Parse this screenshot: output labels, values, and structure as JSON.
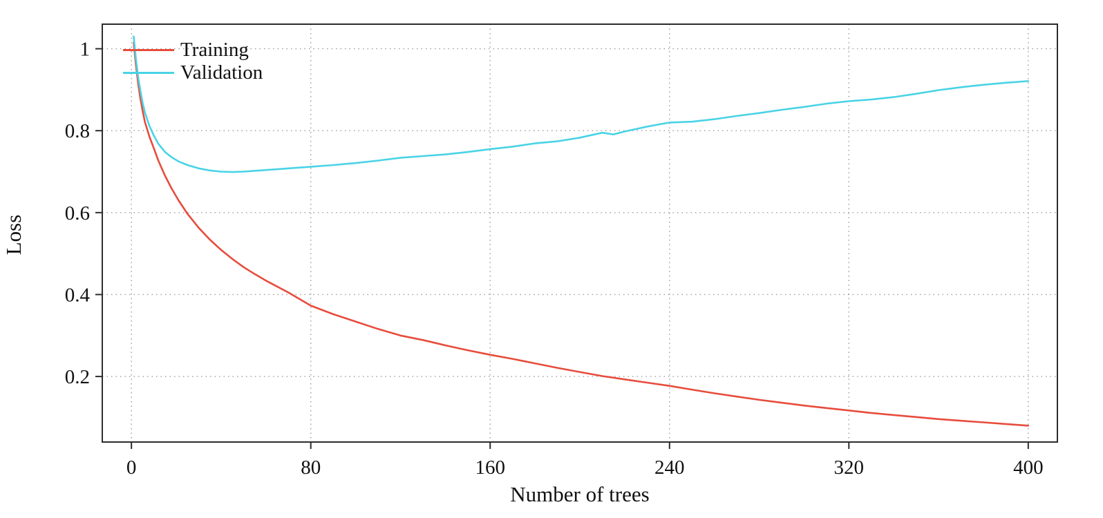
{
  "chart_data": {
    "type": "line",
    "title": "",
    "xlabel": "Number of trees",
    "ylabel": "Loss",
    "xlim": [
      -13,
      413
    ],
    "ylim": [
      0.04,
      1.06
    ],
    "x_ticks": [
      0,
      80,
      160,
      240,
      320,
      400
    ],
    "x_tick_labels": [
      "0",
      "80",
      "160",
      "240",
      "320",
      "400"
    ],
    "y_ticks": [
      0.2,
      0.4,
      0.6,
      0.8,
      1
    ],
    "y_tick_labels": [
      "0.2",
      "0.4",
      "0.6",
      "0.8",
      "1"
    ],
    "grid": "dotted",
    "grid_color": "#9a9a9a",
    "axis_color": "#2b2b2b",
    "legend_position": "top-left",
    "series": [
      {
        "name": "Training",
        "color": "#e74c3c",
        "x": [
          1,
          2,
          3,
          4,
          5,
          6,
          8,
          10,
          12,
          15,
          18,
          21,
          25,
          30,
          35,
          40,
          45,
          50,
          55,
          60,
          70,
          80,
          90,
          100,
          110,
          120,
          130,
          140,
          150,
          160,
          170,
          180,
          190,
          200,
          210,
          220,
          230,
          240,
          250,
          260,
          270,
          280,
          290,
          300,
          310,
          320,
          330,
          340,
          350,
          360,
          370,
          380,
          390,
          400
        ],
        "y": [
          1.015,
          0.96,
          0.915,
          0.878,
          0.848,
          0.822,
          0.786,
          0.757,
          0.727,
          0.69,
          0.658,
          0.63,
          0.597,
          0.563,
          0.534,
          0.509,
          0.487,
          0.467,
          0.45,
          0.434,
          0.405,
          0.373,
          0.352,
          0.334,
          0.316,
          0.3,
          0.289,
          0.276,
          0.264,
          0.253,
          0.243,
          0.232,
          0.221,
          0.211,
          0.201,
          0.193,
          0.185,
          0.177,
          0.168,
          0.159,
          0.151,
          0.143,
          0.136,
          0.129,
          0.123,
          0.117,
          0.111,
          0.106,
          0.101,
          0.096,
          0.092,
          0.088,
          0.084,
          0.08
        ]
      },
      {
        "name": "Validation",
        "color": "#49d3e6",
        "x": [
          1,
          2,
          3,
          4,
          5,
          6,
          8,
          10,
          12,
          15,
          18,
          21,
          25,
          30,
          35,
          40,
          45,
          50,
          55,
          60,
          70,
          80,
          90,
          100,
          110,
          120,
          130,
          140,
          150,
          160,
          170,
          180,
          190,
          200,
          210,
          215,
          220,
          230,
          240,
          250,
          260,
          270,
          280,
          290,
          300,
          310,
          320,
          330,
          340,
          350,
          360,
          370,
          380,
          390,
          400
        ],
        "y": [
          1.03,
          0.975,
          0.93,
          0.897,
          0.868,
          0.845,
          0.812,
          0.788,
          0.768,
          0.748,
          0.735,
          0.725,
          0.716,
          0.708,
          0.703,
          0.7,
          0.699,
          0.7,
          0.702,
          0.704,
          0.708,
          0.712,
          0.716,
          0.721,
          0.727,
          0.734,
          0.738,
          0.742,
          0.748,
          0.755,
          0.761,
          0.769,
          0.774,
          0.783,
          0.795,
          0.791,
          0.798,
          0.81,
          0.82,
          0.822,
          0.828,
          0.836,
          0.843,
          0.851,
          0.858,
          0.866,
          0.872,
          0.876,
          0.882,
          0.89,
          0.899,
          0.906,
          0.912,
          0.917,
          0.921
        ]
      }
    ]
  }
}
